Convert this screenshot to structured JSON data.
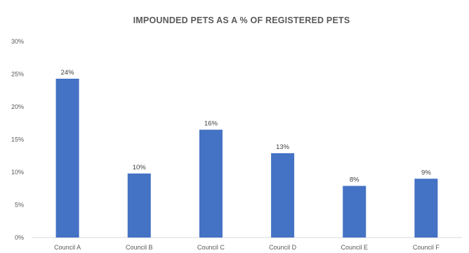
{
  "chart_data": {
    "type": "bar",
    "title": "IMPOUNDED PETS AS A % OF REGISTERED PETS",
    "xlabel": "",
    "ylabel": "",
    "categories": [
      "Council A",
      "Council B",
      "Council C",
      "Council D",
      "Council E",
      "Council F"
    ],
    "values": [
      24.3,
      9.8,
      16.5,
      12.9,
      7.9,
      9.0
    ],
    "data_labels": [
      "24%",
      "10%",
      "16%",
      "13%",
      "8%",
      "9%"
    ],
    "ylim": [
      0,
      30
    ],
    "yticks": [
      0,
      5,
      10,
      15,
      20,
      25,
      30
    ],
    "ytick_labels": [
      "0%",
      "5%",
      "10%",
      "15%",
      "20%",
      "25%",
      "30%"
    ],
    "grid": false,
    "legend": "none",
    "bar_color": "#4472C4",
    "axis_color": "#D9D9D9"
  }
}
